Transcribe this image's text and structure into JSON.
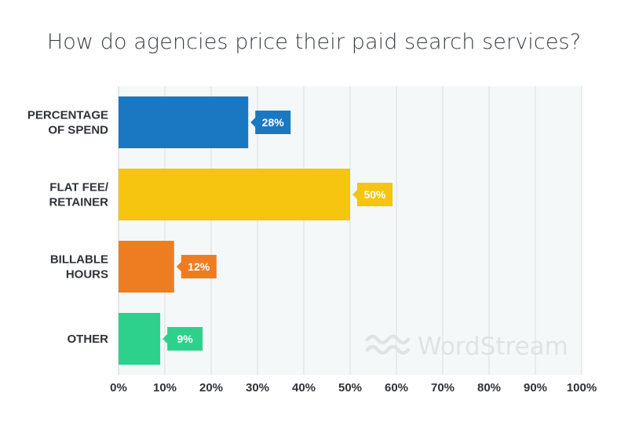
{
  "chart_data": {
    "type": "bar",
    "orientation": "horizontal",
    "title": "How do agencies price their paid search services?",
    "categories": [
      [
        "PERCENTAGE",
        "OF SPEND"
      ],
      [
        "FLAT FEE/",
        "RETAINER"
      ],
      [
        "BILLABLE",
        "HOURS"
      ],
      [
        "OTHER"
      ]
    ],
    "values": [
      28,
      50,
      12,
      9
    ],
    "data_labels": [
      "28%",
      "50%",
      "12%",
      "9%"
    ],
    "colors": [
      "#1a78c2",
      "#f5c50f",
      "#ee7d22",
      "#2ed18b"
    ],
    "xlim": [
      0,
      100
    ],
    "x_ticks": [
      "0%",
      "10%",
      "20%",
      "30%",
      "40%",
      "50%",
      "60%",
      "70%",
      "80%",
      "90%",
      "100%"
    ],
    "grid": true,
    "background": "#f4f8f8"
  },
  "watermark": {
    "text": "WordStream",
    "icon": "wordstream-waves-icon"
  }
}
